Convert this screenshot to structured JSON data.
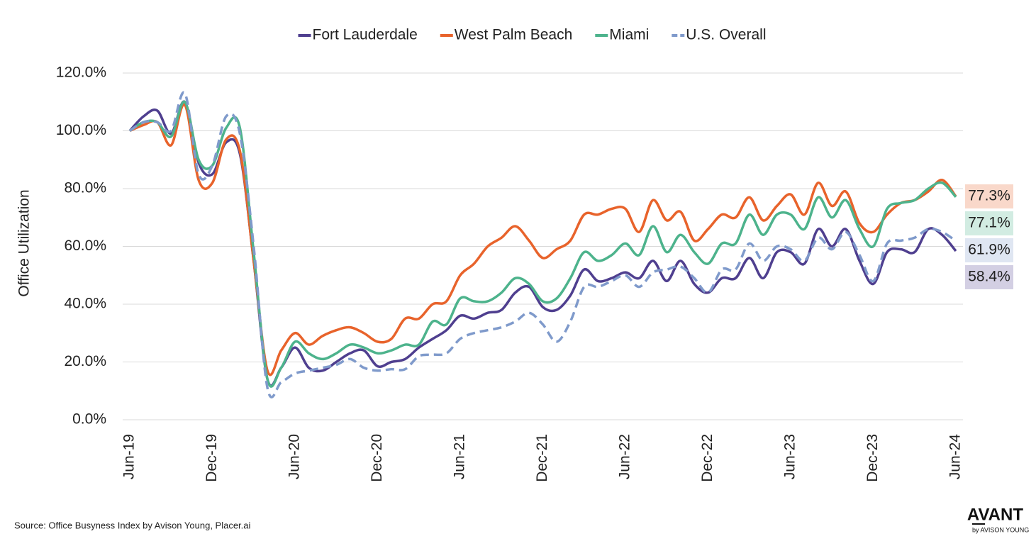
{
  "chart_data": {
    "type": "line",
    "y_label": "Office Utilization",
    "source": "Source: Office Busyness Index by Avison Young, Placer.ai",
    "logo": {
      "name": "AVANT",
      "tagline": "by AVISON YOUNG"
    },
    "categories": [
      "Jun-19",
      null,
      null,
      null,
      null,
      null,
      "Dec-19",
      null,
      null,
      null,
      null,
      null,
      "Jun-20",
      null,
      null,
      null,
      null,
      null,
      "Dec-20",
      null,
      null,
      null,
      null,
      null,
      "Jun-21",
      null,
      null,
      null,
      null,
      null,
      "Dec-21",
      null,
      null,
      null,
      null,
      null,
      "Jun-22",
      null,
      null,
      null,
      null,
      null,
      "Dec-22",
      null,
      null,
      null,
      null,
      null,
      "Jun-23",
      null,
      null,
      null,
      null,
      null,
      "Dec-23",
      null,
      null,
      null,
      null,
      null,
      "Jun-24"
    ],
    "ylim": [
      0,
      120
    ],
    "yticks": [
      {
        "value": 0,
        "label": "0.0%"
      },
      {
        "value": 20,
        "label": "20.0%"
      },
      {
        "value": 40,
        "label": "40.0%"
      },
      {
        "value": 60,
        "label": "60.0%"
      },
      {
        "value": 80,
        "label": "80.0%"
      },
      {
        "value": 100,
        "label": "100.0%"
      },
      {
        "value": 120,
        "label": "120.0%"
      }
    ],
    "grid": true,
    "legend": "top",
    "series": [
      {
        "name": "Fort Lauderdale",
        "color": "#4f3f8f",
        "dashed": false,
        "values": [
          100,
          105,
          107,
          99,
          110,
          89,
          85,
          96,
          92,
          55,
          14,
          18,
          25,
          18,
          17,
          20,
          23,
          24,
          18.5,
          20,
          21,
          25,
          28,
          31,
          36,
          35,
          37,
          38,
          44,
          46,
          39,
          38,
          43,
          52,
          48,
          49,
          51,
          49,
          55,
          48,
          55,
          47,
          44,
          49,
          49,
          56,
          49,
          58,
          58,
          54,
          66,
          60,
          66,
          55,
          47,
          58,
          59,
          58,
          66,
          64,
          58.4
        ],
        "value_labels": [
          null,
          null,
          null,
          null,
          null,
          null,
          null,
          null,
          null,
          null,
          null,
          null,
          null,
          null,
          null,
          null,
          null,
          null,
          null,
          null,
          null,
          null,
          null,
          null,
          null,
          null,
          null,
          null,
          null,
          null,
          null,
          null,
          null,
          null,
          null,
          null,
          null,
          null,
          null,
          null,
          null,
          null,
          null,
          null,
          null,
          null,
          null,
          null,
          null,
          null,
          null,
          null,
          null,
          null,
          null,
          null,
          null,
          null,
          null,
          null,
          "58.4%"
        ]
      },
      {
        "name": "West Palm Beach",
        "color": "#e8632b",
        "dashed": false,
        "values": [
          100,
          102,
          103,
          95,
          109,
          83,
          82,
          97,
          93,
          55,
          17,
          24,
          30,
          26,
          29,
          31,
          32,
          30,
          27,
          28,
          35,
          35,
          40,
          41,
          50,
          54,
          60,
          63,
          67,
          62,
          56,
          59,
          62,
          71,
          71,
          73,
          73,
          65,
          76,
          69,
          72,
          62,
          66,
          71,
          70,
          77,
          69,
          74,
          78,
          71,
          82,
          74,
          79,
          68,
          65,
          71,
          75,
          76,
          79,
          83,
          77.3
        ],
        "value_labels": [
          null,
          null,
          null,
          null,
          null,
          null,
          null,
          null,
          null,
          null,
          null,
          null,
          null,
          null,
          null,
          null,
          null,
          null,
          null,
          null,
          null,
          null,
          null,
          null,
          null,
          null,
          null,
          null,
          null,
          null,
          null,
          null,
          null,
          null,
          null,
          null,
          null,
          null,
          null,
          null,
          null,
          null,
          null,
          null,
          null,
          null,
          null,
          null,
          null,
          null,
          null,
          null,
          null,
          null,
          null,
          null,
          null,
          null,
          null,
          null,
          "77.3%"
        ]
      },
      {
        "name": "Miami",
        "color": "#4db38c",
        "dashed": false,
        "values": [
          100,
          103,
          103,
          98,
          110,
          90,
          88,
          101,
          101,
          58,
          14,
          18,
          27,
          23,
          21,
          23,
          26,
          25,
          23,
          24,
          26,
          26,
          34,
          33,
          42,
          41,
          41,
          44,
          49,
          47,
          41,
          42,
          49,
          58,
          55,
          57,
          61,
          57,
          67,
          58,
          64,
          58,
          54,
          61,
          61,
          71,
          64,
          71,
          71,
          66,
          77,
          70,
          76,
          66,
          60,
          73,
          75,
          76,
          80,
          82,
          77.1
        ],
        "value_labels": [
          null,
          null,
          null,
          null,
          null,
          null,
          null,
          null,
          null,
          null,
          null,
          null,
          null,
          null,
          null,
          null,
          null,
          null,
          null,
          null,
          null,
          null,
          null,
          null,
          null,
          null,
          null,
          null,
          null,
          null,
          null,
          null,
          null,
          null,
          null,
          null,
          null,
          null,
          null,
          null,
          null,
          null,
          null,
          null,
          null,
          null,
          null,
          null,
          null,
          null,
          null,
          null,
          null,
          null,
          null,
          null,
          null,
          null,
          null,
          null,
          "77.1%"
        ]
      },
      {
        "name": "U.S. Overall",
        "color": "#7f9acb",
        "dashed": true,
        "values": [
          100,
          103,
          103,
          100,
          113,
          85,
          88,
          105,
          99,
          60,
          11,
          13,
          16,
          17,
          18,
          19,
          21,
          18,
          17,
          17.5,
          17.5,
          22,
          22.5,
          23,
          28,
          30,
          31,
          32,
          34,
          37,
          33,
          27,
          34,
          46,
          46,
          48,
          50,
          46,
          51,
          52,
          53,
          49,
          44,
          52,
          52,
          61,
          55,
          60,
          59,
          55,
          63,
          59,
          65,
          57,
          48,
          61,
          62,
          63,
          66,
          65,
          61.9
        ],
        "value_labels": [
          null,
          null,
          null,
          null,
          null,
          null,
          null,
          null,
          null,
          null,
          null,
          null,
          null,
          null,
          null,
          null,
          null,
          null,
          null,
          null,
          null,
          null,
          null,
          null,
          null,
          null,
          null,
          null,
          null,
          null,
          null,
          null,
          null,
          null,
          null,
          null,
          null,
          null,
          null,
          null,
          null,
          null,
          null,
          null,
          null,
          null,
          null,
          null,
          null,
          null,
          null,
          null,
          null,
          null,
          null,
          null,
          null,
          null,
          null,
          null,
          "61.9%"
        ]
      }
    ]
  }
}
